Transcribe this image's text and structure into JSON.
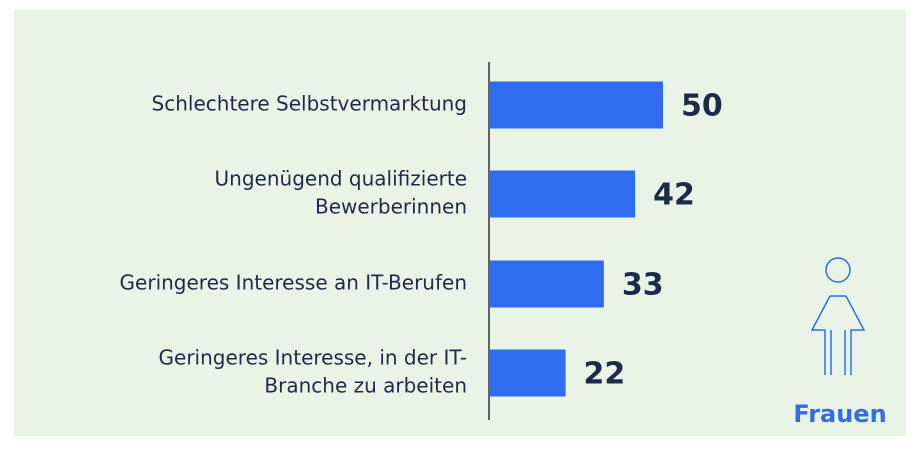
{
  "chart_data": {
    "type": "hbar",
    "categories": [
      [
        "Schlechtere Selbstvermarktung"
      ],
      [
        "Ungenügend qualifizierte",
        "Bewerberinnen"
      ],
      [
        "Geringeres Interesse an IT-Berufen"
      ],
      [
        "Geringeres Interesse, in der IT-",
        "Branche zu arbeiten"
      ]
    ],
    "series": [
      {
        "name": "Frauen",
        "color": "#2f6cf0",
        "values": [
          50,
          42,
          33,
          22
        ]
      }
    ]
  }
}
